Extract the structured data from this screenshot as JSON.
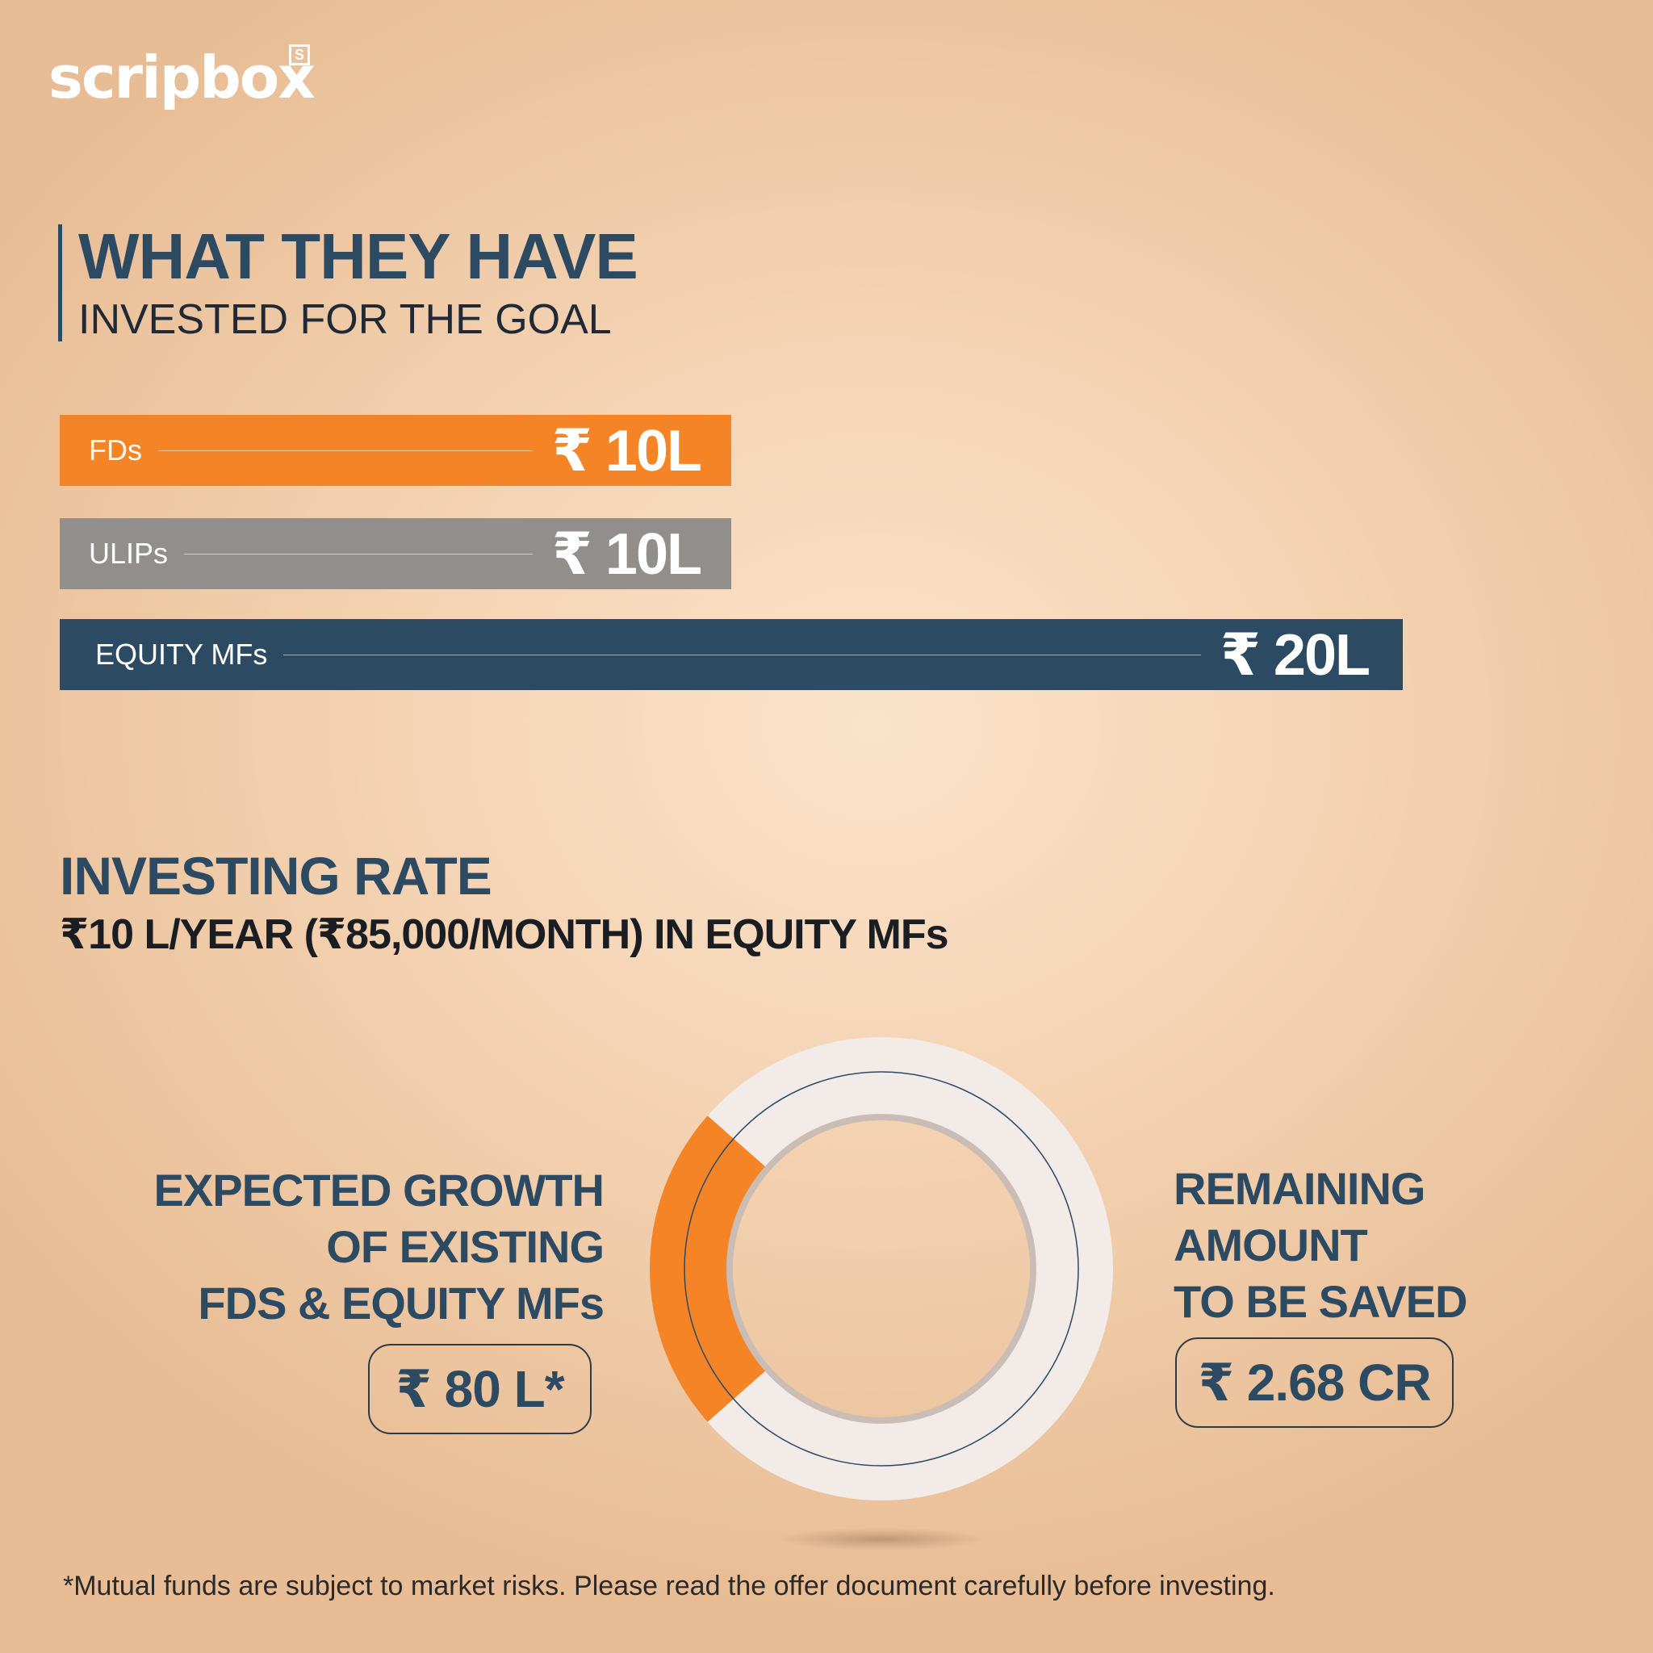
{
  "brand": {
    "logo_text": "scripbox",
    "logo_mark": "S"
  },
  "heading": {
    "title": "WHAT THEY HAVE",
    "subtitle": "INVESTED FOR THE GOAL"
  },
  "chart_data": [
    {
      "type": "bar",
      "orientation": "horizontal",
      "categories": [
        "FDs",
        "ULIPs",
        "EQUITY MFs"
      ],
      "values": [
        10,
        10,
        20
      ],
      "value_labels": [
        "₹ 10L",
        "₹ 10L",
        "₹ 20L"
      ],
      "unit": "L",
      "colors": [
        "#f58426",
        "#928e8b",
        "#2d4a63"
      ]
    },
    {
      "type": "pie",
      "style": "donut",
      "segments": [
        {
          "label": "EXPECTED GROWTH OF EXISTING FDS & EQUITY MFs",
          "value_label": "₹ 80 L*",
          "value": 80,
          "color": "#f58426"
        },
        {
          "label": "REMAINING AMOUNT TO BE SAVED",
          "value_label": "₹ 2.68 CR",
          "value": 268,
          "color": "#f3ebe7"
        }
      ]
    }
  ],
  "investing_rate": {
    "title": "INVESTING RATE",
    "detail": "₹10 L/YEAR (₹85,000/MONTH) IN EQUITY MFs"
  },
  "growth": {
    "lines": [
      "EXPECTED GROWTH",
      "OF EXISTING",
      "FDS & EQUITY MFs"
    ],
    "amount": "₹ 80 L*"
  },
  "remaining": {
    "lines": [
      "REMAINING",
      "AMOUNT",
      "TO BE SAVED"
    ],
    "amount": "₹ 2.68 CR"
  },
  "disclaimer": "*Mutual funds are subject to market risks. Please read the offer document carefully before investing."
}
